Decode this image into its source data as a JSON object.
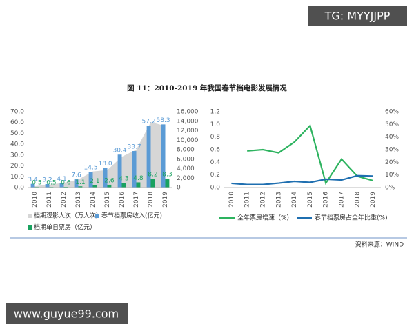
{
  "figure_title": "图 11：2010-2019 年我国春节档电影发展情况",
  "source": "资料来源：WIND",
  "watermarks": [
    "TG: MYYJJPP",
    "www.guyue99.com"
  ],
  "chart_data": [
    {
      "type": "bar",
      "categories": [
        "2010",
        "2011",
        "2012",
        "2013",
        "2014",
        "2015",
        "2016",
        "2017",
        "2018",
        "2019"
      ],
      "ylim": [
        0,
        70
      ],
      "yticks": [
        {
          "value": 0,
          "label": "0.0"
        },
        {
          "value": 10,
          "label": "10.0"
        },
        {
          "value": 20,
          "label": "20.0"
        },
        {
          "value": 30,
          "label": "30.0"
        },
        {
          "value": 40,
          "label": "40.0"
        },
        {
          "value": 50,
          "label": "50.0"
        },
        {
          "value": 60,
          "label": "60.0"
        },
        {
          "value": 70,
          "label": "70.0"
        }
      ],
      "y2lim": [
        0,
        16000
      ],
      "y2ticks": [
        0,
        {
          "value": 2000,
          "label": "2,000"
        },
        {
          "value": 4000,
          "label": "4,000"
        },
        {
          "value": 6000,
          "label": "6,000"
        },
        {
          "value": 8000,
          "label": "8,000"
        },
        {
          "value": 10000,
          "label": "10,000"
        },
        {
          "value": 12000,
          "label": "12,000"
        },
        {
          "value": 14000,
          "label": "14,000"
        },
        {
          "value": 16000,
          "label": "16,000"
        }
      ],
      "grid": false,
      "series": [
        {
          "name": "档期观影人次（万人次）",
          "type": "area",
          "axis": "y2",
          "color": "#d6d6d6",
          "values": [
            300,
            600,
            1000,
            1700,
            3400,
            3700,
            6500,
            8000,
            13800,
            13000
          ]
        },
        {
          "name": "春节档票房收入(亿元)",
          "type": "bar",
          "color": "#5b9bd5",
          "values": [
            3.4,
            3.2,
            4.1,
            7.6,
            14.5,
            18,
            30.4,
            33.7,
            57.2,
            58.3
          ],
          "value_labels": [
            "3.4",
            "3.2",
            "4.1",
            "7.6",
            "14.5",
            "18.0",
            "30.4",
            "33.7",
            "57.2",
            "58.3"
          ]
        },
        {
          "name": "档期单日票房（亿元）",
          "type": "bar",
          "color": "#1aa260",
          "values": [
            0.5,
            0.5,
            0.6,
            1.1,
            2.1,
            2.6,
            4.3,
            4.8,
            8.2,
            8.3
          ],
          "value_labels": [
            "0.5",
            "0.5",
            "0.6",
            "1.1",
            "2.1",
            "2.6",
            "4.3",
            "4.8",
            "8.2",
            "8.3"
          ]
        }
      ]
    },
    {
      "type": "line",
      "categories": [
        "2010",
        "2011",
        "2012",
        "2013",
        "2014",
        "2015",
        "2016",
        "2017",
        "2018",
        "2019"
      ],
      "ylim": [
        0,
        1.2
      ],
      "yticks": [
        {
          "value": 0,
          "label": "0.0"
        },
        0.2,
        0.4,
        0.6,
        0.8,
        {
          "value": 1,
          "label": "1.0"
        },
        1.2
      ],
      "y2lim": [
        0,
        60
      ],
      "y2ticks": [
        {
          "value": 0,
          "label": "0%"
        },
        {
          "value": 10,
          "label": "10%"
        },
        {
          "value": 20,
          "label": "20%"
        },
        {
          "value": 30,
          "label": "30%"
        },
        {
          "value": 40,
          "label": "40%"
        },
        {
          "value": 50,
          "label": "50%"
        },
        {
          "value": 60,
          "label": "60%"
        }
      ],
      "grid": false,
      "series": [
        {
          "name": "全年票房增速（%）",
          "type": "line",
          "axis": "y2",
          "color": "#2db35f",
          "values": [
            null,
            29,
            30,
            27.5,
            36,
            49,
            3.5,
            22.5,
            9,
            5.5
          ]
        },
        {
          "name": "春节档票房占全年比重(%)",
          "type": "line",
          "axis": "y2",
          "color": "#1f6fb0",
          "values": [
            3.3,
            2.4,
            2.4,
            3.5,
            4.9,
            4.1,
            6.6,
            6.0,
            9.4,
            9.1
          ]
        }
      ]
    }
  ]
}
